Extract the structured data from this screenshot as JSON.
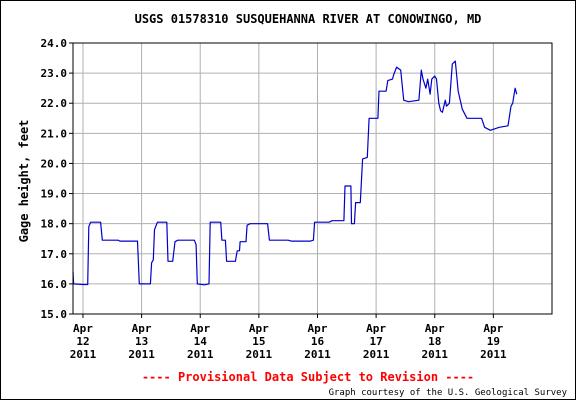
{
  "chart_data": {
    "type": "line",
    "title": "USGS 01578310 SUSQUEHANNA RIVER AT CONOWINGO, MD",
    "ylabel": "Gage height, feet",
    "xlabel": "",
    "ylim": [
      15.0,
      24.0
    ],
    "yticks": [
      "15.0",
      "16.0",
      "17.0",
      "18.0",
      "19.0",
      "20.0",
      "21.0",
      "22.0",
      "23.0",
      "24.0"
    ],
    "xlim": [
      11.83,
      20.0
    ],
    "xticks": [
      {
        "x": 12,
        "labels": [
          "Apr",
          "12",
          "2011"
        ]
      },
      {
        "x": 13,
        "labels": [
          "Apr",
          "13",
          "2011"
        ]
      },
      {
        "x": 14,
        "labels": [
          "Apr",
          "14",
          "2011"
        ]
      },
      {
        "x": 15,
        "labels": [
          "Apr",
          "15",
          "2011"
        ]
      },
      {
        "x": 16,
        "labels": [
          "Apr",
          "16",
          "2011"
        ]
      },
      {
        "x": 17,
        "labels": [
          "Apr",
          "17",
          "2011"
        ]
      },
      {
        "x": 18,
        "labels": [
          "Apr",
          "18",
          "2011"
        ]
      },
      {
        "x": 19,
        "labels": [
          "Apr",
          "19",
          "2011"
        ]
      }
    ],
    "grid": true,
    "line_color": "#0000cc",
    "series": [
      {
        "name": "",
        "points": [
          [
            11.83,
            16.4
          ],
          [
            11.84,
            16.0
          ],
          [
            12.0,
            15.98
          ],
          [
            12.08,
            15.98
          ],
          [
            12.1,
            17.9
          ],
          [
            12.13,
            18.05
          ],
          [
            12.3,
            18.05
          ],
          [
            12.33,
            17.45
          ],
          [
            12.5,
            17.45
          ],
          [
            12.6,
            17.45
          ],
          [
            12.63,
            17.42
          ],
          [
            12.93,
            17.42
          ],
          [
            12.96,
            16.0
          ],
          [
            13.1,
            16.0
          ],
          [
            13.15,
            16.0
          ],
          [
            13.17,
            16.7
          ],
          [
            13.2,
            16.8
          ],
          [
            13.22,
            17.8
          ],
          [
            13.27,
            18.05
          ],
          [
            13.43,
            18.05
          ],
          [
            13.45,
            16.75
          ],
          [
            13.53,
            16.75
          ],
          [
            13.57,
            17.4
          ],
          [
            13.62,
            17.45
          ],
          [
            13.9,
            17.45
          ],
          [
            13.93,
            17.3
          ],
          [
            13.95,
            16.0
          ],
          [
            14.07,
            15.97
          ],
          [
            14.15,
            16.0
          ],
          [
            14.17,
            18.05
          ],
          [
            14.35,
            18.05
          ],
          [
            14.37,
            17.45
          ],
          [
            14.43,
            17.45
          ],
          [
            14.45,
            16.75
          ],
          [
            14.6,
            16.75
          ],
          [
            14.63,
            17.1
          ],
          [
            14.67,
            17.1
          ],
          [
            14.68,
            17.4
          ],
          [
            14.78,
            17.4
          ],
          [
            14.8,
            17.95
          ],
          [
            14.85,
            18.0
          ],
          [
            15.15,
            18.0
          ],
          [
            15.18,
            17.45
          ],
          [
            15.5,
            17.45
          ],
          [
            15.55,
            17.42
          ],
          [
            15.88,
            17.42
          ],
          [
            15.93,
            17.45
          ],
          [
            15.95,
            18.05
          ],
          [
            16.2,
            18.05
          ],
          [
            16.25,
            18.1
          ],
          [
            16.45,
            18.1
          ],
          [
            16.47,
            19.25
          ],
          [
            16.57,
            19.25
          ],
          [
            16.58,
            18.0
          ],
          [
            16.63,
            18.0
          ],
          [
            16.65,
            18.7
          ],
          [
            16.73,
            18.7
          ],
          [
            16.77,
            20.15
          ],
          [
            16.85,
            20.2
          ],
          [
            16.88,
            21.5
          ],
          [
            17.03,
            21.5
          ],
          [
            17.05,
            22.4
          ],
          [
            17.17,
            22.4
          ],
          [
            17.2,
            22.75
          ],
          [
            17.28,
            22.8
          ],
          [
            17.3,
            22.95
          ],
          [
            17.35,
            23.2
          ],
          [
            17.42,
            23.1
          ],
          [
            17.47,
            22.1
          ],
          [
            17.55,
            22.05
          ],
          [
            17.73,
            22.1
          ],
          [
            17.77,
            23.1
          ],
          [
            17.8,
            22.8
          ],
          [
            17.85,
            22.5
          ],
          [
            17.88,
            22.8
          ],
          [
            17.92,
            22.3
          ],
          [
            17.95,
            22.8
          ],
          [
            18.0,
            22.9
          ],
          [
            18.03,
            22.8
          ],
          [
            18.07,
            22.0
          ],
          [
            18.1,
            21.75
          ],
          [
            18.13,
            21.7
          ],
          [
            18.18,
            22.1
          ],
          [
            18.2,
            21.9
          ],
          [
            18.25,
            22.0
          ],
          [
            18.3,
            23.3
          ],
          [
            18.35,
            23.4
          ],
          [
            18.4,
            22.4
          ],
          [
            18.47,
            21.8
          ],
          [
            18.55,
            21.5
          ],
          [
            18.8,
            21.5
          ],
          [
            18.85,
            21.2
          ],
          [
            18.95,
            21.1
          ],
          [
            19.1,
            21.2
          ],
          [
            19.25,
            21.25
          ],
          [
            19.3,
            21.9
          ],
          [
            19.33,
            22.0
          ],
          [
            19.37,
            22.5
          ],
          [
            19.4,
            22.3
          ]
        ]
      }
    ]
  },
  "footer": {
    "provisional": "---- Provisional Data Subject to Revision ----",
    "courtesy": "Graph courtesy of the U.S. Geological Survey"
  }
}
